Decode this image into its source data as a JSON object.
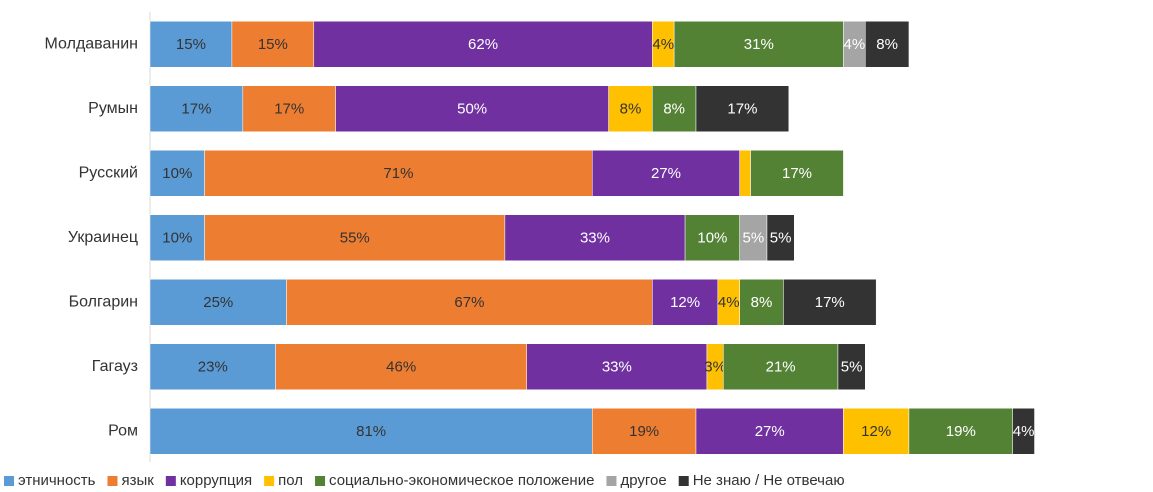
{
  "chart_data": {
    "type": "stacked-bar-horizontal",
    "categories": [
      "Молдаванин",
      "Румын",
      "Русский",
      "Украинец",
      "Болгарин",
      "Гагауз",
      "Ром"
    ],
    "series": [
      {
        "name": "этничность",
        "color": "#5b9bd5",
        "values": [
          15,
          17,
          10,
          10,
          25,
          23,
          81
        ],
        "value_labels": [
          "15%",
          "17%",
          "10%",
          "10%",
          "25%",
          "23%",
          "81%"
        ]
      },
      {
        "name": "язык",
        "color": "#ed7d31",
        "values": [
          15,
          17,
          71,
          55,
          67,
          46,
          19
        ],
        "value_labels": [
          "15%",
          "17%",
          "71%",
          "55%",
          "67%",
          "46%",
          "19%"
        ]
      },
      {
        "name": "коррупция",
        "color": "#7030a0",
        "values": [
          62,
          50,
          27,
          33,
          12,
          33,
          27
        ],
        "value_labels": [
          "62%",
          "50%",
          "27%",
          "33%",
          "12%",
          "33%",
          "27%"
        ]
      },
      {
        "name": "пол",
        "color": "#ffc000",
        "values": [
          4,
          8,
          2,
          0,
          4,
          3,
          12
        ],
        "value_labels": [
          "4%",
          "8%",
          null,
          null,
          "4%",
          "3%",
          "12%"
        ]
      },
      {
        "name": "социально-экономическое положение",
        "color": "#548235",
        "values": [
          31,
          8,
          17,
          10,
          8,
          21,
          19
        ],
        "value_labels": [
          "31%",
          "8%",
          "17%",
          "10%",
          "8%",
          "21%",
          "19%"
        ]
      },
      {
        "name": "другое",
        "color": "#a5a5a5",
        "values": [
          4,
          null,
          null,
          5,
          null,
          null,
          null
        ],
        "value_labels": [
          "4%",
          null,
          null,
          "5%",
          null,
          null,
          null
        ]
      },
      {
        "name": "Не знаю / Не отвечаю",
        "color": "#333333",
        "values": [
          8,
          17,
          null,
          5,
          17,
          5,
          4
        ],
        "value_labels": [
          "8%",
          "17%",
          null,
          "5%",
          "17%",
          "5%",
          "4%"
        ]
      }
    ]
  }
}
